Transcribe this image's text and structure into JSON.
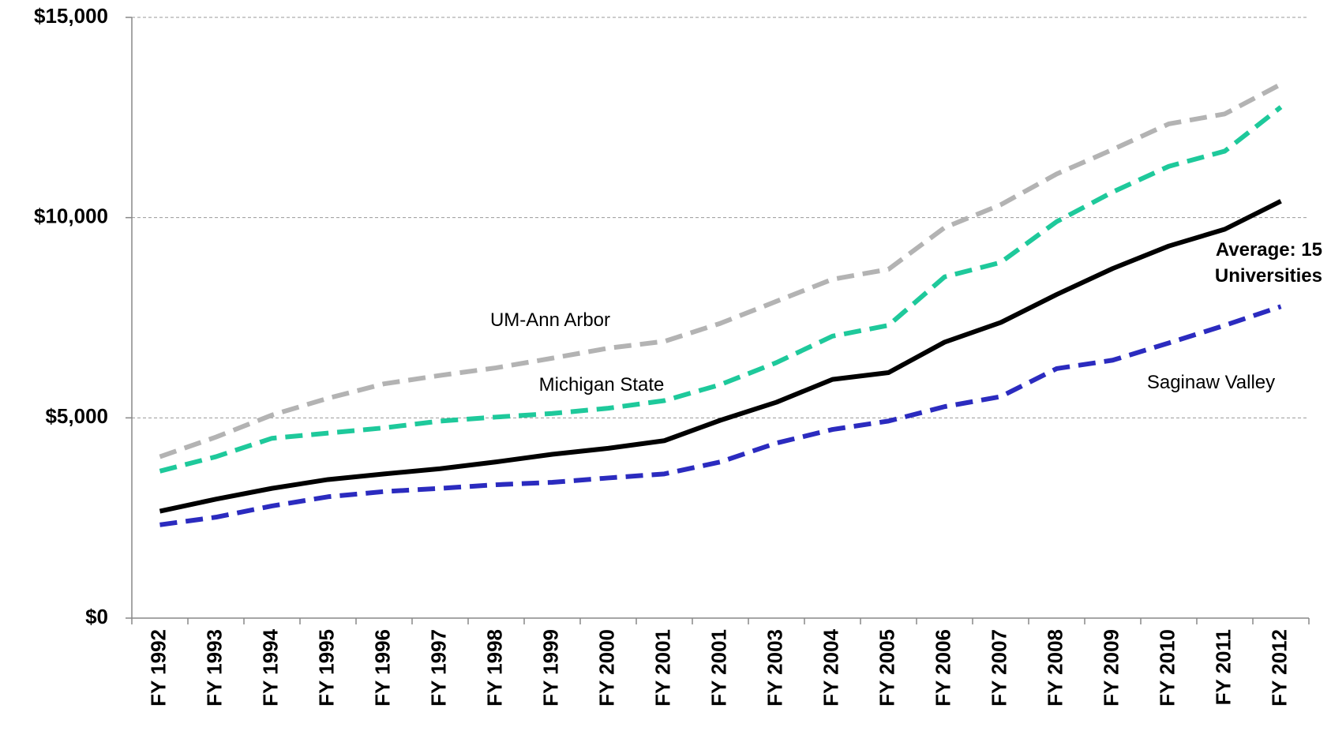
{
  "chart_data": {
    "type": "line",
    "categories": [
      "FY 1992",
      "FY 1993",
      "FY 1994",
      "FY 1995",
      "FY 1996",
      "FY 1997",
      "FY 1998",
      "FY 1999",
      "FY 2000",
      "FY 2001",
      "FY 2001",
      "FY 2003",
      "FY 2004",
      "FY 2005",
      "FY 2006",
      "FY 2007",
      "FY 2008",
      "FY 2009",
      "FY 2010",
      "FY 2011",
      "FY 2012"
    ],
    "series": [
      {
        "name": "UM-Ann Arbor",
        "color": "#b3b3b3",
        "dashed": true,
        "values": [
          4030,
          4520,
          5070,
          5490,
          5850,
          6060,
          6250,
          6490,
          6740,
          6910,
          7360,
          7910,
          8460,
          8710,
          9750,
          10320,
          11090,
          11700,
          12340,
          12590,
          13330
        ]
      },
      {
        "name": "Michigan State",
        "color": "#1ec99b",
        "dashed": true,
        "values": [
          3670,
          4030,
          4490,
          4620,
          4750,
          4920,
          5020,
          5110,
          5240,
          5430,
          5830,
          6380,
          7040,
          7310,
          8520,
          8880,
          9900,
          10640,
          11280,
          11660,
          12760
        ]
      },
      {
        "name": "Average: 15 Universities",
        "color": "#000000",
        "dashed": false,
        "values": [
          2670,
          2970,
          3240,
          3460,
          3600,
          3730,
          3900,
          4090,
          4240,
          4430,
          4940,
          5390,
          5960,
          6130,
          6890,
          7380,
          8080,
          8730,
          9290,
          9710,
          10410
        ]
      },
      {
        "name": "Saginaw Valley",
        "color": "#2b2bbf",
        "dashed": true,
        "values": [
          2330,
          2520,
          2800,
          3030,
          3160,
          3240,
          3330,
          3390,
          3500,
          3600,
          3900,
          4370,
          4710,
          4920,
          5280,
          5530,
          6230,
          6440,
          6870,
          7310,
          7780
        ]
      }
    ],
    "ylim": [
      0,
      15000
    ],
    "yticks": [
      {
        "value": 0,
        "label": "$0"
      },
      {
        "value": 5000,
        "label": "$5,000"
      },
      {
        "value": 10000,
        "label": "$10,000"
      },
      {
        "value": 15000,
        "label": "$15,000"
      }
    ],
    "grid": true
  }
}
